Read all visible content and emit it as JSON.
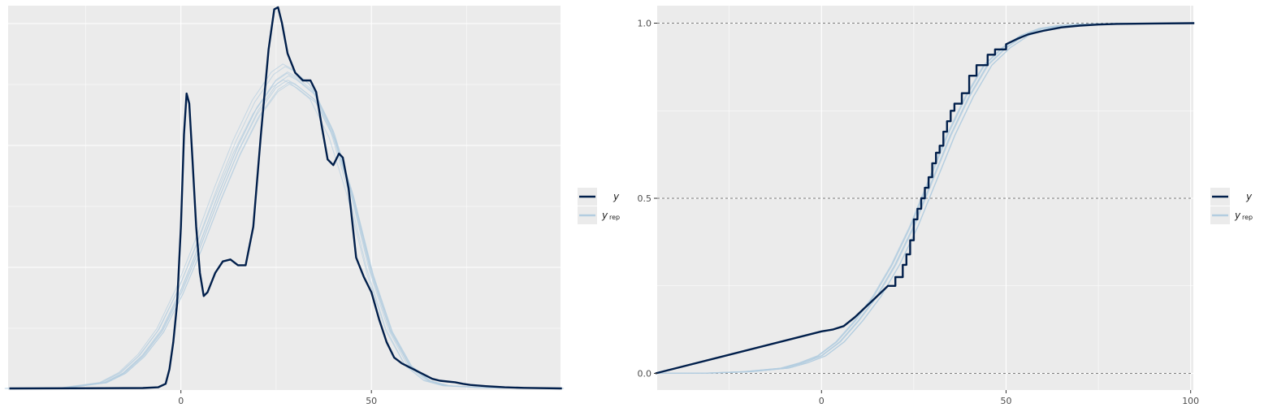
{
  "legend": {
    "y_label": "y",
    "yrep_label": "y",
    "yrep_subscript": "rep"
  },
  "colors": {
    "panel_bg": "#ebebeb",
    "grid": "#ffffff",
    "y_line": "#011f4b",
    "yrep_line": "#b3cde0",
    "ref_line": "#555555"
  },
  "chart_data": [
    {
      "type": "line",
      "subtype": "density_overlay",
      "x_ticks": [
        0,
        50
      ],
      "xlim": [
        -45,
        100
      ],
      "ylim": [
        0,
        1
      ],
      "y_axis_labels_shown": false,
      "grid": true,
      "legend_position": "right",
      "series": [
        {
          "name": "y",
          "points": [
            [
              -45,
              0
            ],
            [
              -10,
              0.001
            ],
            [
              -6,
              0.003
            ],
            [
              -4,
              0.012
            ],
            [
              -3,
              0.05
            ],
            [
              -2,
              0.12
            ],
            [
              -1,
              0.22
            ],
            [
              0,
              0.42
            ],
            [
              0.8,
              0.66
            ],
            [
              1.5,
              0.766
            ],
            [
              2.2,
              0.74
            ],
            [
              3,
              0.6
            ],
            [
              4,
              0.42
            ],
            [
              5,
              0.3
            ],
            [
              6,
              0.24
            ],
            [
              7,
              0.25
            ],
            [
              9,
              0.3
            ],
            [
              11,
              0.33
            ],
            [
              13,
              0.335
            ],
            [
              15,
              0.32
            ],
            [
              17,
              0.32
            ],
            [
              19,
              0.42
            ],
            [
              21,
              0.66
            ],
            [
              23,
              0.88
            ],
            [
              24.5,
              0.985
            ],
            [
              25.5,
              0.99
            ],
            [
              26.5,
              0.95
            ],
            [
              28,
              0.87
            ],
            [
              30,
              0.82
            ],
            [
              32,
              0.8
            ],
            [
              34,
              0.8
            ],
            [
              35.5,
              0.77
            ],
            [
              37,
              0.68
            ],
            [
              38.5,
              0.595
            ],
            [
              40,
              0.58
            ],
            [
              41.5,
              0.61
            ],
            [
              42.5,
              0.6
            ],
            [
              44,
              0.52
            ],
            [
              45,
              0.43
            ],
            [
              46,
              0.34
            ],
            [
              48,
              0.29
            ],
            [
              50,
              0.25
            ],
            [
              52,
              0.18
            ],
            [
              54,
              0.12
            ],
            [
              56,
              0.08
            ],
            [
              58,
              0.065
            ],
            [
              60,
              0.055
            ],
            [
              62,
              0.045
            ],
            [
              64,
              0.035
            ],
            [
              66,
              0.025
            ],
            [
              68,
              0.02
            ],
            [
              70,
              0.018
            ],
            [
              72,
              0.016
            ],
            [
              74,
              0.012
            ],
            [
              76,
              0.009
            ],
            [
              80,
              0.006
            ],
            [
              85,
              0.003
            ],
            [
              90,
              0.0015
            ],
            [
              100,
              0
            ]
          ]
        },
        {
          "name": "y_rep",
          "points": [
            [
              -45,
              0
            ],
            [
              -30,
              0.002
            ],
            [
              -20,
              0.015
            ],
            [
              -15,
              0.04
            ],
            [
              -10,
              0.085
            ],
            [
              -5,
              0.15
            ],
            [
              0,
              0.25
            ],
            [
              5,
              0.37
            ],
            [
              10,
              0.5
            ],
            [
              15,
              0.62
            ],
            [
              20,
              0.72
            ],
            [
              25,
              0.79
            ],
            [
              28,
              0.81
            ],
            [
              30,
              0.8
            ],
            [
              35,
              0.76
            ],
            [
              40,
              0.66
            ],
            [
              45,
              0.5
            ],
            [
              50,
              0.3
            ],
            [
              55,
              0.15
            ],
            [
              60,
              0.06
            ],
            [
              65,
              0.02
            ],
            [
              70,
              0.007
            ],
            [
              80,
              0.002
            ],
            [
              100,
              0
            ]
          ]
        }
      ]
    },
    {
      "type": "line",
      "subtype": "ecdf_overlay",
      "x_ticks": [
        0,
        50,
        100
      ],
      "y_ticks": [
        0.0,
        0.5,
        1.0
      ],
      "y_tick_labels": [
        "0.0",
        "0.5",
        "1.0"
      ],
      "xlim": [
        -45,
        101
      ],
      "ylim": [
        0,
        1
      ],
      "reference_lines": [
        0,
        0.5,
        1
      ],
      "grid": true,
      "legend_position": "right",
      "series": [
        {
          "name": "y",
          "points": [
            [
              -45,
              0
            ],
            [
              0,
              0.12
            ],
            [
              3,
              0.125
            ],
            [
              6,
              0.135
            ],
            [
              9,
              0.16
            ],
            [
              12,
              0.19
            ],
            [
              15,
              0.22
            ],
            [
              18,
              0.25
            ],
            [
              20,
              0.275
            ],
            [
              22,
              0.31
            ],
            [
              23,
              0.34
            ],
            [
              24,
              0.38
            ],
            [
              25,
              0.44
            ],
            [
              26,
              0.47
            ],
            [
              27,
              0.5
            ],
            [
              28,
              0.53
            ],
            [
              29,
              0.56
            ],
            [
              30,
              0.6
            ],
            [
              31,
              0.63
            ],
            [
              32,
              0.65
            ],
            [
              33,
              0.69
            ],
            [
              34,
              0.72
            ],
            [
              35,
              0.75
            ],
            [
              36,
              0.77
            ],
            [
              38,
              0.8
            ],
            [
              40,
              0.85
            ],
            [
              42,
              0.88
            ],
            [
              45,
              0.91
            ],
            [
              47,
              0.925
            ],
            [
              50,
              0.94
            ],
            [
              53,
              0.955
            ],
            [
              56,
              0.968
            ],
            [
              60,
              0.978
            ],
            [
              65,
              0.988
            ],
            [
              70,
              0.993
            ],
            [
              75,
              0.996
            ],
            [
              80,
              0.998
            ],
            [
              90,
              0.999
            ],
            [
              101,
              1
            ]
          ]
        },
        {
          "name": "y_rep",
          "points": [
            [
              -45,
              0
            ],
            [
              -30,
              0.001
            ],
            [
              -20,
              0.005
            ],
            [
              -10,
              0.015
            ],
            [
              -5,
              0.03
            ],
            [
              0,
              0.05
            ],
            [
              5,
              0.09
            ],
            [
              10,
              0.15
            ],
            [
              15,
              0.22
            ],
            [
              20,
              0.31
            ],
            [
              25,
              0.42
            ],
            [
              30,
              0.55
            ],
            [
              35,
              0.68
            ],
            [
              40,
              0.79
            ],
            [
              45,
              0.88
            ],
            [
              50,
              0.93
            ],
            [
              55,
              0.965
            ],
            [
              60,
              0.985
            ],
            [
              65,
              0.993
            ],
            [
              70,
              0.997
            ],
            [
              80,
              0.999
            ],
            [
              101,
              1
            ]
          ]
        }
      ]
    }
  ]
}
